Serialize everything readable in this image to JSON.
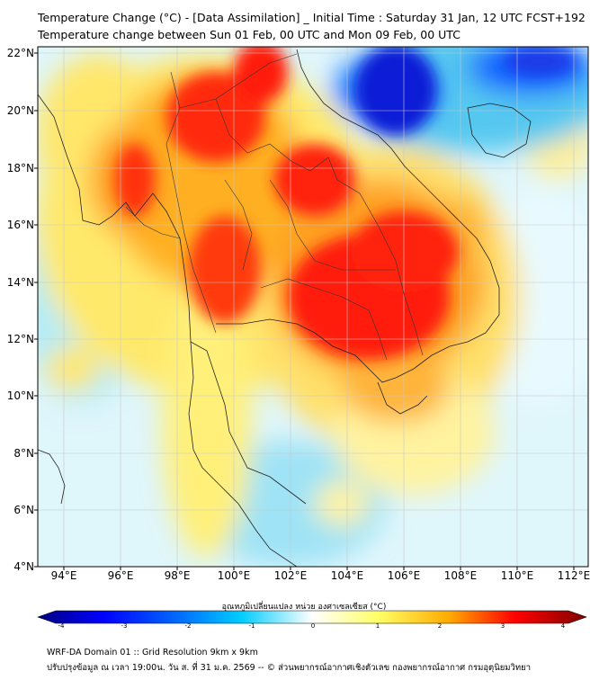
{
  "header": {
    "title_line1": "Temperature Change (°C) - [Data Assimilation] _ Initial Time : Saturday 31 Jan, 12 UTC FCST+192",
    "title_line2": "Temperature change between Sun 01 Feb, 00 UTC and Mon 09 Feb, 00 UTC"
  },
  "map": {
    "region": "Mainland Southeast Asia",
    "lat_labels": [
      "22°N",
      "20°N",
      "18°N",
      "16°N",
      "14°N",
      "12°N",
      "10°N",
      "8°N",
      "6°N",
      "4°N"
    ],
    "lon_labels": [
      "94°E",
      "96°E",
      "98°E",
      "100°E",
      "102°E",
      "104°E",
      "106°E",
      "108°E",
      "110°E",
      "112°E"
    ],
    "lon_range": [
      93,
      112.5
    ],
    "lat_range": [
      4,
      22.2
    ]
  },
  "colorbar": {
    "title": "อุณหภูมิเปลี่ยนแปลง หน่วย องศาเซลเซียส (°C)",
    "ticks": [
      "-4",
      "-3",
      "-2",
      "-1",
      "0",
      "1",
      "2",
      "3",
      "4"
    ],
    "range": [
      -4,
      4
    ],
    "colors": [
      "#00007f",
      "#0000ff",
      "#0066ff",
      "#00ccff",
      "#ffffff",
      "#ffff66",
      "#ffaa00",
      "#ff0000",
      "#7f0000"
    ]
  },
  "footer": {
    "line1": "WRF-DA Domain 01 :: Grid Resolution 9km x 9km",
    "line2": "ปรับปรุงข้อมูล ณ เวลา 19:00น. วัน ส. ที่ 31 ม.ค. 2569 -- © ส่วนพยากรณ์อากาศเชิงตัวเลข กองพยากรณ์อากาศ กรมอุตุนิยมวิทยา"
  }
}
